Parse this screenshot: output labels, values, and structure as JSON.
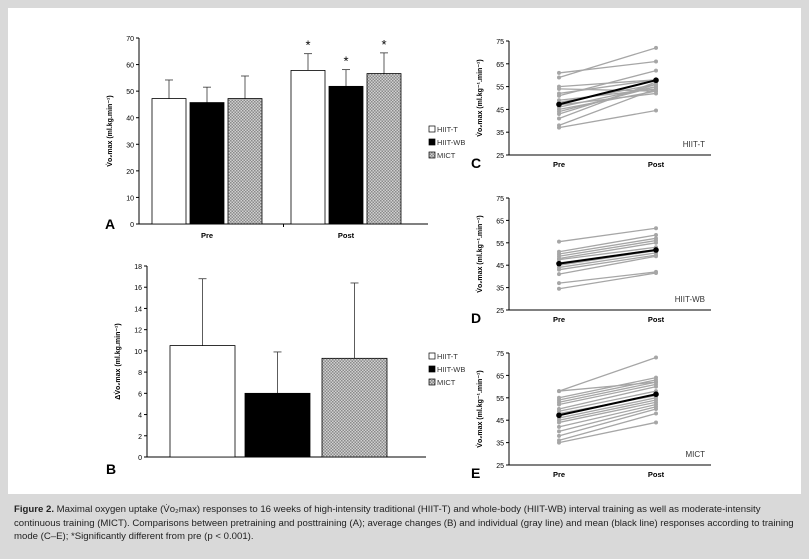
{
  "caption": {
    "label": "Figure 2.",
    "text": "Maximal oxygen uptake (V̇o₂max) responses to 16 weeks of high-intensity traditional (HIIT-T) and whole-body (HIIT-WB) interval training as well as moderate-intensity continuous training (MICT). Comparisons between pretraining and posttraining (A); average changes (B) and individual (gray line) and mean (black line) responses according to training mode (C–E); *Significantly different from pre (p < 0.001)."
  },
  "colors": {
    "hiit_t": "#ffffff",
    "hiit_wb": "#000000",
    "mict": "#b3b3b3",
    "individual": "#a6a6a6",
    "mean": "#000000",
    "background": "#d9d9d9"
  },
  "chart_data": [
    {
      "panel": "A",
      "type": "bar",
      "ylabel": "V̇o₂max (ml.kg.min⁻¹)",
      "ylim": [
        0,
        70
      ],
      "yticks": [
        "0",
        "10",
        "20",
        "30",
        "40",
        "50",
        "60",
        "70"
      ],
      "categories": [
        "Pre",
        "Post"
      ],
      "series": [
        {
          "name": "HIIT-T",
          "values": [
            47.2,
            57.8
          ],
          "sd": [
            7.0,
            6.3
          ]
        },
        {
          "name": "HIIT-WB",
          "values": [
            45.7,
            51.8
          ],
          "sd": [
            5.8,
            6.3
          ]
        },
        {
          "name": "MICT",
          "values": [
            47.2,
            56.6
          ],
          "sd": [
            8.5,
            7.8
          ]
        }
      ],
      "significance": [
        "",
        "*"
      ],
      "legend": "right"
    },
    {
      "panel": "B",
      "type": "bar",
      "ylabel": "ΔV̇o₂max (ml.kg.min⁻¹)",
      "ylim": [
        0,
        18
      ],
      "yticks": [
        "0",
        "2",
        "4",
        "6",
        "8",
        "10",
        "12",
        "14",
        "16",
        "18"
      ],
      "series": [
        {
          "name": "HIIT-T",
          "values": [
            10.5
          ],
          "sd": [
            6.3
          ]
        },
        {
          "name": "HIIT-WB",
          "values": [
            6.0
          ],
          "sd": [
            3.9
          ]
        },
        {
          "name": "MICT",
          "values": [
            9.3
          ],
          "sd": [
            7.1
          ]
        }
      ],
      "legend": "right"
    },
    {
      "panel": "C",
      "type": "line",
      "group": "HIIT-T",
      "ylabel": "V̇o₂max (ml.kg⁻¹.min⁻¹)",
      "ylim": [
        25,
        75
      ],
      "yticks": [
        "25",
        "35",
        "45",
        "55",
        "65",
        "75"
      ],
      "categories": [
        "Pre",
        "Post"
      ],
      "individuals": [
        [
          61,
          66
        ],
        [
          59,
          72
        ],
        [
          55,
          58
        ],
        [
          54,
          53
        ],
        [
          52,
          58
        ],
        [
          51,
          62
        ],
        [
          49,
          54
        ],
        [
          48,
          56
        ],
        [
          47,
          52
        ],
        [
          46,
          55
        ],
        [
          45,
          53
        ],
        [
          44,
          55
        ],
        [
          43,
          56
        ],
        [
          41,
          57
        ],
        [
          38,
          54
        ],
        [
          37,
          44.5
        ]
      ],
      "mean": [
        47.2,
        57.8
      ]
    },
    {
      "panel": "D",
      "type": "line",
      "group": "HIIT-WB",
      "ylabel": "V̇o₂max (ml.kg⁻¹.min⁻¹)",
      "ylim": [
        25,
        75
      ],
      "yticks": [
        "25",
        "35",
        "45",
        "55",
        "65",
        "75"
      ],
      "categories": [
        "Pre",
        "Post"
      ],
      "individuals": [
        [
          55.5,
          61.5
        ],
        [
          51,
          58.5
        ],
        [
          50,
          57
        ],
        [
          49,
          56
        ],
        [
          48,
          55
        ],
        [
          47.5,
          53
        ],
        [
          46,
          52
        ],
        [
          45,
          51.5
        ],
        [
          44,
          50.5
        ],
        [
          43,
          49.5
        ],
        [
          41,
          49
        ],
        [
          37,
          42
        ],
        [
          34.5,
          41.5
        ]
      ],
      "mean": [
        45.7,
        51.8
      ]
    },
    {
      "panel": "E",
      "type": "line",
      "group": "MICT",
      "ylabel": "V̇o₂max (ml.kg⁻¹.min⁻¹)",
      "ylim": [
        25,
        75
      ],
      "yticks": [
        "25",
        "35",
        "45",
        "55",
        "65",
        "75"
      ],
      "categories": [
        "Pre",
        "Post"
      ],
      "individuals": [
        [
          58,
          73
        ],
        [
          58,
          62
        ],
        [
          55,
          64
        ],
        [
          54,
          63
        ],
        [
          53,
          62
        ],
        [
          52,
          61
        ],
        [
          50,
          60
        ],
        [
          49,
          58
        ],
        [
          48,
          56
        ],
        [
          46,
          55
        ],
        [
          45,
          54
        ],
        [
          44,
          53
        ],
        [
          42,
          52
        ],
        [
          40,
          51
        ],
        [
          38,
          50
        ],
        [
          36,
          48
        ],
        [
          35,
          44
        ]
      ],
      "mean": [
        47.2,
        56.6
      ]
    }
  ]
}
